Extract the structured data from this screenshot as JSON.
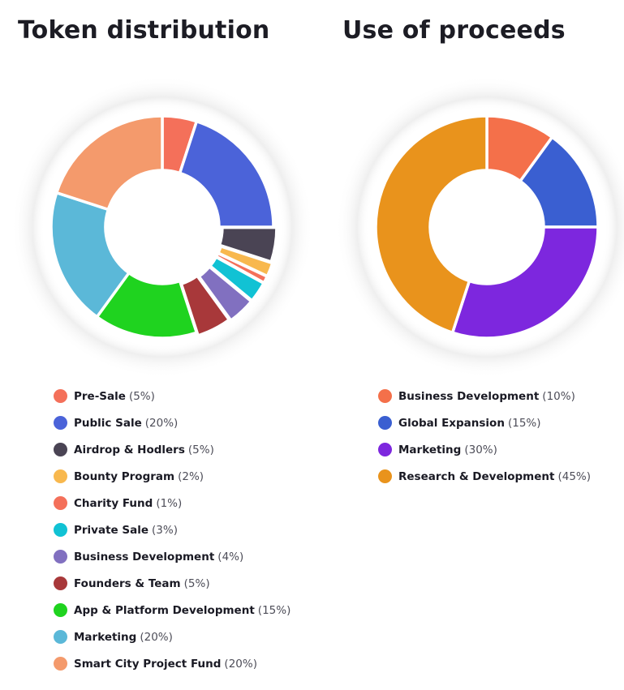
{
  "chart_data": [
    {
      "type": "pie",
      "title": "Token distribution",
      "series": [
        {
          "name": "Pre-Sale",
          "value": 5,
          "label": "5%",
          "color": "#f4705a"
        },
        {
          "name": "Public Sale",
          "value": 20,
          "label": "20%",
          "color": "#4b63d9"
        },
        {
          "name": "Airdrop & Hodlers",
          "value": 5,
          "label": "5%",
          "color": "#4a4454"
        },
        {
          "name": "Bounty Program",
          "value": 2,
          "label": "2%",
          "color": "#f8b84e"
        },
        {
          "name": "Charity Fund",
          "value": 1,
          "label": "1%",
          "color": "#f4705a"
        },
        {
          "name": "Private Sale",
          "value": 3,
          "label": "3%",
          "color": "#11c2d4"
        },
        {
          "name": "Business Development",
          "value": 4,
          "label": "4%",
          "color": "#8170c0"
        },
        {
          "name": "Founders & Team",
          "value": 5,
          "label": "5%",
          "color": "#a8383a"
        },
        {
          "name": "App & Platform Development",
          "value": 15,
          "label": "15%",
          "color": "#1fd31f"
        },
        {
          "name": "Marketing",
          "value": 20,
          "label": "20%",
          "color": "#5bb8d8"
        },
        {
          "name": "Smart City Project Fund",
          "value": 20,
          "label": "20%",
          "color": "#f49a6c"
        }
      ]
    },
    {
      "type": "pie",
      "title": "Use of proceeds",
      "series": [
        {
          "name": "Business Development",
          "value": 10,
          "label": "10%",
          "color": "#f4704a"
        },
        {
          "name": "Global Expansion",
          "value": 15,
          "label": "15%",
          "color": "#3a5fd1"
        },
        {
          "name": "Marketing",
          "value": 30,
          "label": "30%",
          "color": "#7d27de"
        },
        {
          "name": "Research & Development",
          "value": 45,
          "label": "45%",
          "color": "#e9931c"
        }
      ]
    }
  ]
}
